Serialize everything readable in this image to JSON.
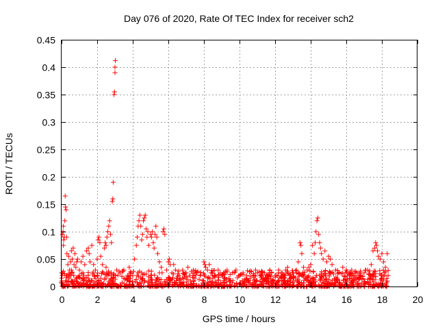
{
  "chart_data": {
    "type": "scatter",
    "title": "Day 076 of 2020, Rate Of TEC Index for receiver sch2",
    "xlabel": "GPS time / hours",
    "ylabel": "ROTI / TECUs",
    "xlim": [
      0,
      20
    ],
    "ylim": [
      0,
      0.45
    ],
    "x_ticks": [
      0,
      2,
      4,
      6,
      8,
      10,
      12,
      14,
      16,
      18,
      20
    ],
    "x_tick_labels": [
      "0",
      "2",
      "4",
      "6",
      "8",
      "10",
      "12",
      "14",
      "16",
      "18",
      "20"
    ],
    "y_ticks": [
      0,
      0.05,
      0.1,
      0.15,
      0.2,
      0.25,
      0.3,
      0.35,
      0.4,
      0.45
    ],
    "y_tick_labels": [
      "0",
      "0.05",
      "0.1",
      "0.15",
      "0.2",
      "0.25",
      "0.3",
      "0.35",
      "0.4",
      "0.45"
    ],
    "grid": true,
    "marker": "+",
    "color": "#ff0000",
    "series": [
      {
        "name": "ROTI",
        "points": [
          [
            0.05,
            0.095
          ],
          [
            0.08,
            0.1
          ],
          [
            0.1,
            0.11
          ],
          [
            0.12,
            0.085
          ],
          [
            0.15,
            0.09
          ],
          [
            0.18,
            0.12
          ],
          [
            0.2,
            0.165
          ],
          [
            0.22,
            0.145
          ],
          [
            0.25,
            0.14
          ],
          [
            0.28,
            0.09
          ],
          [
            0.1,
            0.075
          ],
          [
            0.3,
            0.06
          ],
          [
            0.35,
            0.04
          ],
          [
            0.4,
            0.055
          ],
          [
            0.45,
            0.03
          ],
          [
            0.5,
            0.045
          ],
          [
            0.55,
            0.065
          ],
          [
            0.6,
            0.05
          ],
          [
            0.65,
            0.07
          ],
          [
            0.7,
            0.04
          ],
          [
            0.75,
            0.06
          ],
          [
            0.8,
            0.035
          ],
          [
            0.9,
            0.05
          ],
          [
            1.0,
            0.03
          ],
          [
            1.1,
            0.045
          ],
          [
            1.2,
            0.025
          ],
          [
            1.3,
            0.04
          ],
          [
            1.4,
            0.065
          ],
          [
            1.5,
            0.07
          ],
          [
            1.55,
            0.06
          ],
          [
            1.6,
            0.045
          ],
          [
            1.7,
            0.075
          ],
          [
            1.8,
            0.04
          ],
          [
            1.9,
            0.03
          ],
          [
            2.0,
            0.05
          ],
          [
            2.05,
            0.085
          ],
          [
            2.1,
            0.09
          ],
          [
            2.15,
            0.08
          ],
          [
            2.2,
            0.055
          ],
          [
            2.3,
            0.04
          ],
          [
            2.4,
            0.07
          ],
          [
            2.45,
            0.08
          ],
          [
            2.5,
            0.075
          ],
          [
            2.55,
            0.09
          ],
          [
            2.6,
            0.1
          ],
          [
            2.65,
            0.11
          ],
          [
            2.7,
            0.12
          ],
          [
            2.75,
            0.095
          ],
          [
            2.8,
            0.08
          ],
          [
            2.85,
            0.155
          ],
          [
            2.88,
            0.16
          ],
          [
            2.9,
            0.19
          ],
          [
            2.95,
            0.35
          ],
          [
            2.97,
            0.355
          ],
          [
            3.0,
            0.39
          ],
          [
            3.0,
            0.4
          ],
          [
            3.02,
            0.412
          ],
          [
            2.5,
            0.035
          ],
          [
            3.1,
            0.03
          ],
          [
            3.3,
            0.025
          ],
          [
            3.5,
            0.03
          ],
          [
            3.7,
            0.02
          ],
          [
            3.9,
            0.025
          ],
          [
            4.1,
            0.05
          ],
          [
            4.2,
            0.075
          ],
          [
            4.25,
            0.09
          ],
          [
            4.3,
            0.11
          ],
          [
            4.35,
            0.12
          ],
          [
            4.4,
            0.13
          ],
          [
            4.45,
            0.11
          ],
          [
            4.5,
            0.085
          ],
          [
            4.55,
            0.095
          ],
          [
            4.6,
            0.12
          ],
          [
            4.65,
            0.125
          ],
          [
            4.7,
            0.13
          ],
          [
            4.75,
            0.105
          ],
          [
            4.8,
            0.09
          ],
          [
            4.85,
            0.1
          ],
          [
            4.9,
            0.075
          ],
          [
            5.0,
            0.095
          ],
          [
            5.05,
            0.09
          ],
          [
            5.1,
            0.1
          ],
          [
            5.15,
            0.08
          ],
          [
            5.2,
            0.07
          ],
          [
            5.25,
            0.095
          ],
          [
            5.3,
            0.11
          ],
          [
            5.35,
            0.09
          ],
          [
            5.4,
            0.06
          ],
          [
            5.5,
            0.045
          ],
          [
            5.6,
            0.035
          ],
          [
            5.7,
            0.1
          ],
          [
            5.75,
            0.105
          ],
          [
            5.8,
            0.095
          ],
          [
            5.9,
            0.03
          ],
          [
            6.0,
            0.045
          ],
          [
            6.05,
            0.05
          ],
          [
            6.1,
            0.04
          ],
          [
            6.2,
            0.025
          ],
          [
            6.4,
            0.03
          ],
          [
            6.6,
            0.02
          ],
          [
            6.8,
            0.03
          ],
          [
            7.0,
            0.025
          ],
          [
            7.2,
            0.02
          ],
          [
            7.4,
            0.03
          ],
          [
            7.6,
            0.025
          ],
          [
            7.8,
            0.02
          ],
          [
            8.0,
            0.045
          ],
          [
            8.05,
            0.04
          ],
          [
            8.1,
            0.035
          ],
          [
            8.2,
            0.03
          ],
          [
            8.4,
            0.025
          ],
          [
            8.6,
            0.02
          ],
          [
            8.8,
            0.03
          ],
          [
            9.0,
            0.02
          ],
          [
            9.2,
            0.025
          ],
          [
            9.4,
            0.015
          ],
          [
            9.6,
            0.025
          ],
          [
            9.8,
            0.03
          ],
          [
            10.0,
            0.02
          ],
          [
            10.2,
            0.025
          ],
          [
            10.4,
            0.02
          ],
          [
            10.6,
            0.015
          ],
          [
            10.8,
            0.02
          ],
          [
            11.0,
            0.025
          ],
          [
            11.2,
            0.02
          ],
          [
            11.4,
            0.025
          ],
          [
            11.6,
            0.02
          ],
          [
            11.8,
            0.025
          ],
          [
            12.0,
            0.02
          ],
          [
            12.2,
            0.03
          ],
          [
            12.4,
            0.025
          ],
          [
            12.6,
            0.03
          ],
          [
            12.8,
            0.02
          ],
          [
            13.0,
            0.025
          ],
          [
            13.2,
            0.03
          ],
          [
            13.3,
            0.045
          ],
          [
            13.4,
            0.08
          ],
          [
            13.45,
            0.075
          ],
          [
            13.5,
            0.06
          ],
          [
            13.6,
            0.035
          ],
          [
            13.8,
            0.03
          ],
          [
            14.0,
            0.04
          ],
          [
            14.1,
            0.075
          ],
          [
            14.2,
            0.06
          ],
          [
            14.25,
            0.08
          ],
          [
            14.3,
            0.1
          ],
          [
            14.35,
            0.12
          ],
          [
            14.4,
            0.125
          ],
          [
            14.45,
            0.095
          ],
          [
            14.5,
            0.08
          ],
          [
            14.55,
            0.07
          ],
          [
            14.6,
            0.06
          ],
          [
            14.7,
            0.05
          ],
          [
            14.8,
            0.065
          ],
          [
            14.9,
            0.045
          ],
          [
            15.0,
            0.055
          ],
          [
            15.2,
            0.04
          ],
          [
            15.4,
            0.03
          ],
          [
            15.6,
            0.025
          ],
          [
            15.8,
            0.035
          ],
          [
            16.0,
            0.03
          ],
          [
            16.2,
            0.025
          ],
          [
            16.4,
            0.02
          ],
          [
            16.6,
            0.025
          ],
          [
            16.8,
            0.02
          ],
          [
            17.0,
            0.025
          ],
          [
            17.2,
            0.03
          ],
          [
            17.4,
            0.04
          ],
          [
            17.5,
            0.065
          ],
          [
            17.6,
            0.07
          ],
          [
            17.65,
            0.08
          ],
          [
            17.7,
            0.075
          ],
          [
            17.75,
            0.065
          ],
          [
            17.8,
            0.055
          ],
          [
            17.9,
            0.05
          ],
          [
            18.0,
            0.06
          ],
          [
            18.1,
            0.045
          ],
          [
            18.2,
            0.035
          ],
          [
            18.3,
            0.06
          ],
          [
            18.35,
            0.02
          ],
          [
            0.3,
            0.02
          ],
          [
            0.6,
            0.025
          ],
          [
            1.0,
            0.02
          ],
          [
            1.5,
            0.015
          ],
          [
            2.0,
            0.02
          ],
          [
            2.5,
            0.015
          ],
          [
            3.5,
            0.015
          ],
          [
            4.0,
            0.02
          ],
          [
            4.5,
            0.025
          ],
          [
            5.0,
            0.02
          ],
          [
            5.5,
            0.025
          ],
          [
            6.5,
            0.015
          ],
          [
            7.5,
            0.015
          ],
          [
            8.5,
            0.015
          ],
          [
            9.5,
            0.01
          ],
          [
            10.5,
            0.01
          ],
          [
            11.5,
            0.015
          ],
          [
            12.5,
            0.015
          ],
          [
            13.5,
            0.02
          ],
          [
            14.5,
            0.02
          ],
          [
            15.5,
            0.015
          ],
          [
            16.5,
            0.015
          ],
          [
            17.5,
            0.02
          ],
          [
            18.0,
            0.015
          ],
          [
            18.3,
            0.01
          ],
          [
            1.2,
            0.055
          ],
          [
            0.85,
            0.045
          ],
          [
            0.55,
            0.03
          ],
          [
            3.8,
            0.035
          ],
          [
            6.3,
            0.04
          ],
          [
            7.1,
            0.035
          ],
          [
            8.3,
            0.04
          ],
          [
            9.3,
            0.03
          ],
          [
            10.9,
            0.03
          ],
          [
            11.7,
            0.03
          ],
          [
            12.7,
            0.035
          ],
          [
            13.9,
            0.035
          ],
          [
            15.1,
            0.05
          ],
          [
            16.3,
            0.03
          ],
          [
            17.1,
            0.03
          ]
        ]
      }
    ]
  }
}
